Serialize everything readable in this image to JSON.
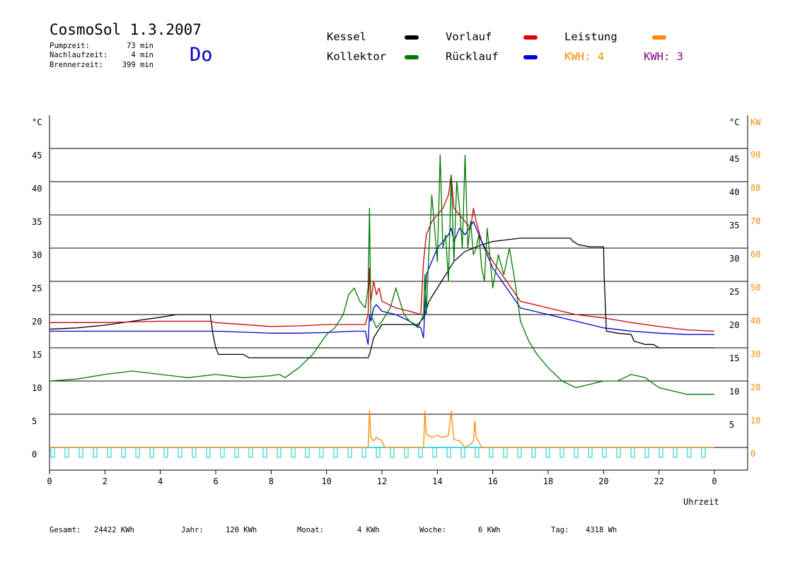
{
  "header": {
    "title": "CosmoSol 1.3.2007",
    "day": "Do",
    "stats": [
      {
        "label": "Pumpzeit:",
        "value": "73 min"
      },
      {
        "label": "Nachlaufzeit:",
        "value": "4 min"
      },
      {
        "label": "Brennerzeit:",
        "value": "399 min"
      }
    ]
  },
  "legend": {
    "items": [
      {
        "label": "Kessel",
        "color": "#000000"
      },
      {
        "label": "Vorlauf",
        "color": "#dd0000"
      },
      {
        "label": "Leistung",
        "color": "#ff8800"
      },
      {
        "label": "Kollektor",
        "color": "#007700"
      },
      {
        "label": "Rücklauf",
        "color": "#0000dd"
      }
    ],
    "kwh_orange": "KWH: 4",
    "kwh_purple": "KWH: 3",
    "orange": "#ff8800",
    "purple": "#800080"
  },
  "footer": {
    "gesamt_label": "Gesamt:",
    "gesamt_value": "24422 KWh",
    "jahr_label": "Jahr:",
    "jahr_value": "120 KWh",
    "monat_label": "Monat:",
    "monat_value": "4 KWh",
    "woche_label": "Woche:",
    "woche_value": "6 KWh",
    "tag_label": "Tag:",
    "tag_value": "4318 Wh"
  },
  "chart_data": {
    "type": "line",
    "xlabel": "Uhrzeit",
    "ylabel_left": "°C",
    "ylabel_right": "°C",
    "ylabel_right2": "KW",
    "x_ticks": [
      "0",
      "2",
      "4",
      "6",
      "8",
      "10",
      "12",
      "14",
      "16",
      "18",
      "20",
      "22",
      "0"
    ],
    "y_ticks_left": [
      "0",
      "5",
      "10",
      "15",
      "20",
      "25",
      "30",
      "35",
      "40",
      "45"
    ],
    "y_ticks_right": [
      "",
      "5",
      "10",
      "15",
      "20",
      "25",
      "30",
      "35",
      "40",
      "45"
    ],
    "y_ticks_kw": [
      "0",
      "10",
      "20",
      "30",
      "40",
      "50",
      "60",
      "70",
      "80",
      "90"
    ],
    "xlim": [
      0,
      24
    ],
    "ylim": [
      0,
      45
    ],
    "grid": true,
    "series": [
      {
        "name": "Kessel",
        "color": "#000000",
        "x": [
          0,
          1,
          2,
          3,
          4,
          4.6,
          5,
          5.8,
          5.9,
          6.0,
          6.1,
          6.5,
          7.0,
          7.2,
          7.3,
          8,
          9,
          10,
          11,
          11.5,
          11.55,
          11.7,
          12,
          13,
          13.3,
          13.5,
          13.7,
          14,
          14.3,
          14.6,
          15,
          15.3,
          15.6,
          16,
          17,
          18,
          18.8,
          18.9,
          19.1,
          19.5,
          20,
          20.02,
          20.1,
          20.5,
          21,
          21.1,
          21.5,
          21.8,
          22,
          22.5,
          23,
          24
        ],
        "values": [
          17.8,
          18,
          18.4,
          19,
          19.6,
          20,
          20,
          20,
          17,
          15,
          14,
          14,
          14,
          13.5,
          13.5,
          13.5,
          13.5,
          13.5,
          13.5,
          13.5,
          14,
          16.5,
          18.5,
          18.5,
          18.5,
          19.5,
          22,
          24,
          26,
          28,
          29.5,
          30,
          30.5,
          31,
          31.5,
          31.5,
          31.5,
          31,
          30.5,
          30.2,
          30.2,
          26,
          17.5,
          17.2,
          17,
          16,
          15.5,
          15.5,
          15,
          15,
          15,
          15
        ]
      },
      {
        "name": "Vorlauf",
        "color": "#cc0000",
        "x": [
          0,
          2,
          4,
          5.8,
          6,
          8,
          9,
          10,
          11,
          11.4,
          11.5,
          11.55,
          11.6,
          11.7,
          11.8,
          11.9,
          12,
          12.5,
          13,
          13.4,
          13.5,
          13.6,
          13.8,
          14,
          14.2,
          14.4,
          14.5,
          14.6,
          14.8,
          15,
          15.2,
          15.3,
          15.4,
          15.6,
          16,
          16.5,
          17,
          18,
          19,
          20,
          21,
          22,
          23,
          24
        ],
        "values": [
          18.8,
          18.8,
          19,
          19,
          18.8,
          18.2,
          18.3,
          18.5,
          18.5,
          18.5,
          20,
          27,
          22,
          25,
          23,
          24,
          22,
          21,
          20.5,
          20,
          28,
          32,
          34,
          35,
          36,
          38,
          41,
          36,
          35,
          34,
          33,
          36,
          34,
          31,
          28,
          25,
          22,
          21,
          20,
          19.5,
          18.8,
          18.2,
          17.7,
          17.5
        ]
      },
      {
        "name": "Rücklauf",
        "color": "#0000cc",
        "x": [
          0,
          2,
          4,
          6,
          8,
          9,
          10,
          11,
          11.4,
          11.5,
          11.55,
          11.6,
          11.7,
          11.8,
          11.9,
          12,
          12.5,
          13,
          13.4,
          13.5,
          13.6,
          13.8,
          14,
          14.2,
          14.4,
          14.5,
          14.6,
          14.8,
          15,
          15.3,
          15.6,
          16,
          16.5,
          17,
          18,
          19,
          20,
          21,
          22,
          23,
          24
        ],
        "values": [
          17.5,
          17.5,
          17.5,
          17.5,
          17.2,
          17.2,
          17.3,
          17.5,
          17.5,
          15.5,
          20,
          19,
          21,
          21.5,
          21,
          20.5,
          20,
          19,
          18,
          16.5,
          26,
          28,
          30,
          31,
          32,
          33,
          31,
          33,
          32,
          34,
          31,
          27,
          24,
          21,
          20,
          19,
          18,
          17.5,
          17.2,
          17,
          17
        ]
      },
      {
        "name": "Kollektor",
        "color": "#007700",
        "x": [
          0,
          1,
          2,
          3,
          4,
          5,
          6,
          7,
          8,
          8.3,
          8.5,
          9,
          9.5,
          10,
          10.3,
          10.6,
          10.8,
          11,
          11.2,
          11.4,
          11.5,
          11.55,
          11.6,
          11.8,
          12,
          12.3,
          12.5,
          12.8,
          13,
          13.3,
          13.5,
          13.55,
          13.6,
          13.7,
          13.8,
          14,
          14.1,
          14.2,
          14.3,
          14.4,
          14.5,
          14.6,
          14.7,
          14.8,
          14.9,
          15,
          15.1,
          15.2,
          15.3,
          15.4,
          15.5,
          15.6,
          15.7,
          15.8,
          16,
          16.2,
          16.4,
          16.6,
          16.8,
          17,
          17.3,
          17.6,
          18,
          18.5,
          19,
          19.5,
          20,
          20.5,
          21,
          21.5,
          22,
          22.5,
          23,
          24
        ],
        "values": [
          10,
          10.3,
          11,
          11.5,
          11,
          10.5,
          11,
          10.5,
          10.8,
          11,
          10.5,
          12,
          14,
          17,
          18,
          20,
          23,
          24,
          22,
          21,
          24,
          36,
          20,
          18,
          19,
          21,
          24,
          20,
          19,
          18,
          20,
          26,
          20,
          30,
          38,
          28,
          44,
          30,
          32,
          25,
          41,
          28,
          40,
          36,
          30,
          44,
          30,
          34,
          29,
          30,
          32,
          27,
          25,
          33,
          24,
          29,
          26,
          30,
          25,
          19,
          16,
          14,
          12,
          10,
          9,
          9.5,
          10,
          10,
          11,
          10.5,
          9,
          8.5,
          8,
          8
        ]
      },
      {
        "name": "Leistung",
        "color": "#ff8800",
        "x": [
          0,
          11.5,
          11.55,
          11.6,
          11.7,
          11.8,
          12,
          12.1,
          13.5,
          13.55,
          13.6,
          13.8,
          14,
          14.2,
          14.4,
          14.5,
          14.6,
          14.8,
          14.9,
          15,
          15.2,
          15.3,
          15.35,
          15.4,
          15.5,
          15.6,
          24
        ],
        "values": [
          0,
          0,
          5.5,
          1.5,
          1,
          1.5,
          1,
          0,
          0,
          5.5,
          2,
          1.5,
          1.8,
          1.5,
          1.8,
          5.5,
          1.2,
          1,
          0.5,
          0,
          0.5,
          1,
          4,
          1.5,
          0.8,
          0,
          0
        ]
      }
    ]
  }
}
